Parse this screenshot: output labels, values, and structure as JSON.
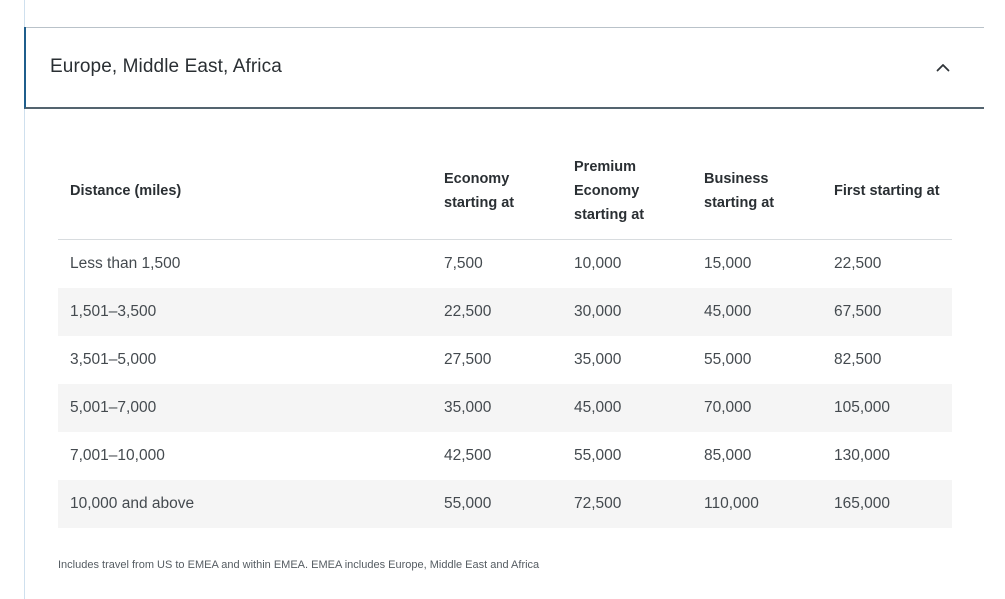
{
  "accordion": {
    "title": "Europe, Middle East, Africa",
    "expanded": true,
    "toggle_icon": "chevron-up-icon"
  },
  "table": {
    "headers": [
      "Distance (miles)",
      "Economy starting at",
      "Premium Economy starting at",
      "Business starting at",
      "First starting at"
    ],
    "rows": [
      [
        "Less than 1,500",
        "7,500",
        "10,000",
        "15,000",
        "22,500"
      ],
      [
        "1,501–3,500",
        "22,500",
        "30,000",
        "45,000",
        "67,500"
      ],
      [
        "3,501–5,000",
        "27,500",
        "35,000",
        "55,000",
        "82,500"
      ],
      [
        "5,001–7,000",
        "35,000",
        "45,000",
        "70,000",
        "105,000"
      ],
      [
        "7,001–10,000",
        "42,500",
        "55,000",
        "85,000",
        "130,000"
      ],
      [
        "10,000 and above",
        "55,000",
        "72,500",
        "110,000",
        "165,000"
      ]
    ]
  },
  "footnote": "Includes travel from US to EMEA and within EMEA. EMEA includes Europe, Middle East and Africa",
  "colors": {
    "accent": "#1f5e8c",
    "stripe": "#f5f5f5",
    "text": "#2f3438"
  }
}
